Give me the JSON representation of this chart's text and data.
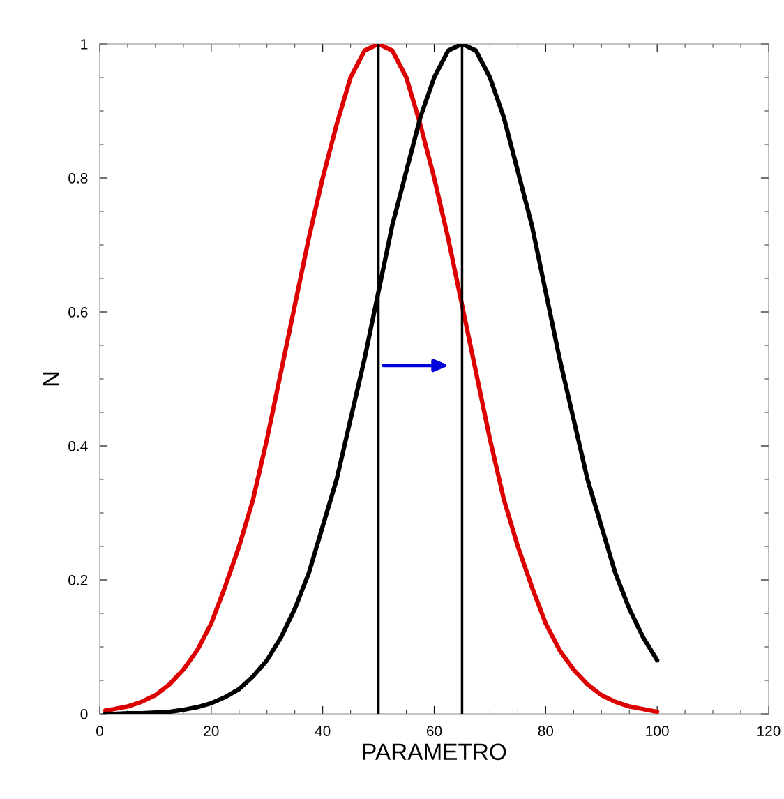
{
  "chart_data": {
    "type": "line",
    "xlabel": "PARAMETRO",
    "ylabel": "N",
    "x": [
      1,
      2.5,
      5,
      7.5,
      10,
      12.5,
      15,
      17.5,
      20,
      22.5,
      25,
      27.5,
      30,
      32.5,
      35,
      37.5,
      40,
      42.5,
      45,
      47.5,
      50,
      52.5,
      55,
      57.5,
      60,
      62.5,
      65,
      67.5,
      70,
      72.5,
      75,
      77.5,
      80,
      82.5,
      85,
      87.5,
      90,
      92.5,
      95,
      97.5,
      100
    ],
    "series": [
      {
        "color": "#dd0000",
        "values": [
          0.005,
          0.007,
          0.011,
          0.018,
          0.028,
          0.044,
          0.066,
          0.095,
          0.135,
          0.19,
          0.25,
          0.32,
          0.41,
          0.51,
          0.61,
          0.71,
          0.8,
          0.88,
          0.95,
          0.99,
          1,
          0.99,
          0.95,
          0.88,
          0.8,
          0.71,
          0.61,
          0.51,
          0.41,
          0.32,
          0.25,
          0.19,
          0.135,
          0.095,
          0.066,
          0.044,
          0.028,
          0.018,
          0.011,
          0.007,
          0.003
        ]
      },
      {
        "color": "#000000",
        "values": [
          0,
          0,
          0.001,
          0.001,
          0.002,
          0.003,
          0.006,
          0.01,
          0.016,
          0.025,
          0.037,
          0.056,
          0.08,
          0.114,
          0.157,
          0.21,
          0.28,
          0.35,
          0.44,
          0.53,
          0.63,
          0.73,
          0.81,
          0.89,
          0.95,
          0.99,
          1,
          0.99,
          0.95,
          0.89,
          0.81,
          0.73,
          0.63,
          0.53,
          0.44,
          0.35,
          0.28,
          0.21,
          0.157,
          0.114,
          0.08
        ]
      }
    ],
    "xlim": [
      0,
      120
    ],
    "xticks": [
      0,
      20,
      40,
      60,
      80,
      100,
      120
    ],
    "ylim": [
      0,
      1
    ],
    "yticks": [
      0,
      0.2,
      0.4,
      0.6,
      0.8,
      1
    ],
    "ref_lines": [
      {
        "axis": "x",
        "value": 50,
        "color": "#000000"
      },
      {
        "axis": "x",
        "value": 65,
        "color": "#000000"
      }
    ],
    "marker": "none",
    "line_style": "solid"
  }
}
